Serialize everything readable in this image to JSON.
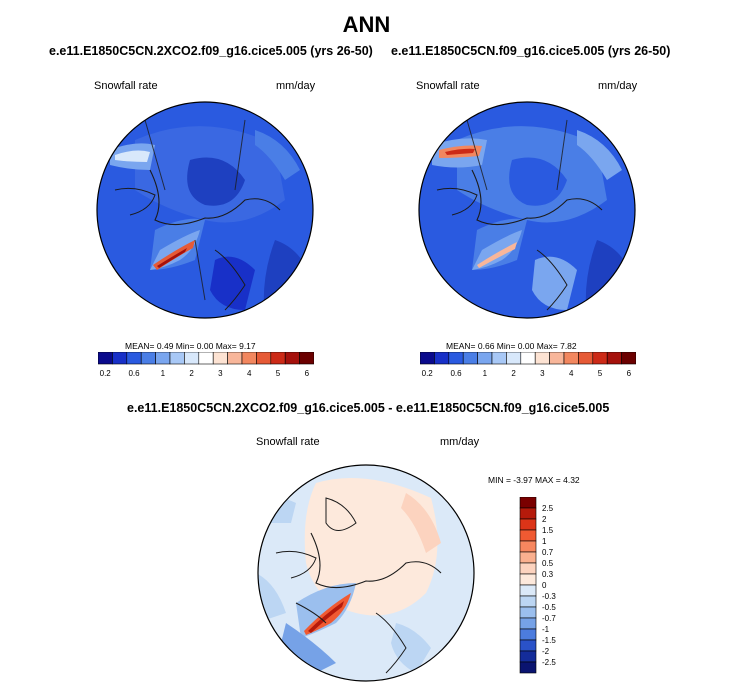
{
  "title": "ANN",
  "panels": [
    {
      "title": "e.e11.E1850C5CN.2XCO2.f09_g16.cice5.005 (yrs 26-50)",
      "variable": "Snowfall rate",
      "units": "mm/day",
      "stats_label": "MEAN=  0.49  Min=  0.00  Max=  9.17",
      "stats": {
        "mean": 0.49,
        "min": 0.0,
        "max": 9.17
      }
    },
    {
      "title": "e.e11.E1850C5CN.f09_g16.cice5.005 (yrs 26-50)",
      "variable": "Snowfall rate",
      "units": "mm/day",
      "stats_label": "MEAN=  0.66  Min=  0.00  Max=  7.82",
      "stats": {
        "mean": 0.66,
        "min": 0.0,
        "max": 7.82
      }
    }
  ],
  "colorbar": {
    "labels": [
      "0.2",
      "0.6",
      "1",
      "2",
      "3",
      "4",
      "5",
      "6"
    ],
    "colors": [
      "#0a0a8c",
      "#1830c8",
      "#2a5ae0",
      "#4a7ee6",
      "#7aa6ef",
      "#a8c8f6",
      "#d8e8fb",
      "#ffffff",
      "#fde3d3",
      "#f8b69a",
      "#f2875f",
      "#e65a36",
      "#cc2a17",
      "#a5110c",
      "#6b0000"
    ]
  },
  "difference": {
    "title": "e.e11.E1850C5CN.2XCO2.f09_g16.cice5.005 - e.e11.E1850C5CN.f09_g16.cice5.005",
    "variable": "Snowfall rate",
    "units": "mm/day",
    "minmax_label": "MIN =  -3.97 MAX =   4.32",
    "stats": {
      "min": -3.97,
      "max": 4.32
    },
    "colorbar_labels": [
      "2.5",
      "2",
      "1.5",
      "1",
      "0.7",
      "0.5",
      "0.3",
      "0",
      "-0.3",
      "-0.5",
      "-0.7",
      "-1",
      "-1.5",
      "-2",
      "-2.5"
    ],
    "colorbar_colors": [
      "#7a0000",
      "#b51a0b",
      "#dc3418",
      "#f05a32",
      "#f7875f",
      "#fab08f",
      "#fcd3bf",
      "#fde9dc",
      "#dbe9f8",
      "#bcd6f3",
      "#9bbfee",
      "#76a2e7",
      "#4c7cde",
      "#2a52c8",
      "#142c9a",
      "#0a1470"
    ]
  }
}
